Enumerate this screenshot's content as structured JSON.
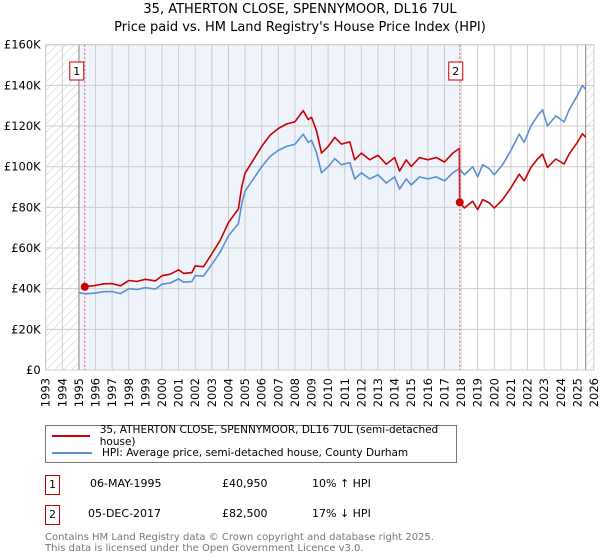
{
  "title": "35, ATHERTON CLOSE, SPENNYMOOR, DL16 7UL",
  "subtitle": "Price paid vs. HM Land Registry's House Price Index (HPI)",
  "colors": {
    "price": "#cc0000",
    "hpi": "#5b8fd0",
    "shade": "#eef3fc",
    "grid": "#cccccc"
  },
  "chart_data": {
    "type": "line",
    "title": "35, ATHERTON CLOSE, SPENNYMOOR, DL16 7UL",
    "xlim": [
      1993,
      2026
    ],
    "ylim": [
      0,
      160000
    ],
    "x_ticks": [
      "1993",
      "1994",
      "1995",
      "1996",
      "1997",
      "1998",
      "1999",
      "2000",
      "2001",
      "2002",
      "2003",
      "2004",
      "2005",
      "2006",
      "2007",
      "2008",
      "2009",
      "2010",
      "2011",
      "2012",
      "2013",
      "2014",
      "2015",
      "2016",
      "2017",
      "2018",
      "2019",
      "2020",
      "2021",
      "2022",
      "2023",
      "2024",
      "2025",
      "2026"
    ],
    "y_ticks": [
      {
        "v": 0,
        "label": "£0"
      },
      {
        "v": 20000,
        "label": "£20K"
      },
      {
        "v": 40000,
        "label": "£40K"
      },
      {
        "v": 60000,
        "label": "£60K"
      },
      {
        "v": 80000,
        "label": "£80K"
      },
      {
        "v": 100000,
        "label": "£100K"
      },
      {
        "v": 120000,
        "label": "£120K"
      },
      {
        "v": 140000,
        "label": "£140K"
      },
      {
        "v": 160000,
        "label": "£160K"
      }
    ],
    "grid": true,
    "data_range": [
      1995,
      2025.5
    ],
    "series": [
      {
        "name": "35, ATHERTON CLOSE, SPENNYMOOR, DL16 7UL (semi-detached house)",
        "color": "#cc0000",
        "points": [
          [
            1995.35,
            40.95
          ],
          [
            1996,
            41.6
          ],
          [
            1996.5,
            42.4
          ],
          [
            1997,
            42.5
          ],
          [
            1997.5,
            41.4
          ],
          [
            1998,
            44
          ],
          [
            1998.5,
            43.6
          ],
          [
            1999,
            44.6
          ],
          [
            1999.6,
            43.8
          ],
          [
            2000,
            46.4
          ],
          [
            2000.5,
            47.1
          ],
          [
            2001,
            49.3
          ],
          [
            2001.3,
            47.5
          ],
          [
            2001.8,
            47.9
          ],
          [
            2002,
            51.2
          ],
          [
            2002.5,
            50.8
          ],
          [
            2003,
            57.2
          ],
          [
            2003.5,
            63.8
          ],
          [
            2004,
            72.6
          ],
          [
            2004.6,
            79.2
          ],
          [
            2004.8,
            90.2
          ],
          [
            2005,
            96.8
          ],
          [
            2005.5,
            103.4
          ],
          [
            2006,
            110
          ],
          [
            2006.5,
            115.5
          ],
          [
            2007,
            118.8
          ],
          [
            2007.5,
            121
          ],
          [
            2008,
            122.1
          ],
          [
            2008.5,
            127.6
          ],
          [
            2008.8,
            123.2
          ],
          [
            2009,
            124.3
          ],
          [
            2009.3,
            117.7
          ],
          [
            2009.6,
            106.7
          ],
          [
            2010,
            110
          ],
          [
            2010.4,
            114.4
          ],
          [
            2010.8,
            111.1
          ],
          [
            2011.3,
            112.2
          ],
          [
            2011.6,
            103.4
          ],
          [
            2012,
            106.7
          ],
          [
            2012.5,
            103.4
          ],
          [
            2013,
            105.6
          ],
          [
            2013.5,
            101.2
          ],
          [
            2014,
            104.5
          ],
          [
            2014.3,
            97.9
          ],
          [
            2014.7,
            103.4
          ],
          [
            2015,
            100.1
          ],
          [
            2015.5,
            104.5
          ],
          [
            2016,
            103.4
          ],
          [
            2016.5,
            104.5
          ],
          [
            2017,
            102.3
          ],
          [
            2017.5,
            106.7
          ],
          [
            2017.9,
            109
          ],
          [
            2017.92,
            82.5
          ],
          [
            2018.2,
            79.7
          ],
          [
            2018.7,
            83
          ],
          [
            2019,
            78.9
          ],
          [
            2019.3,
            83.8
          ],
          [
            2019.7,
            82.2
          ],
          [
            2020,
            79.7
          ],
          [
            2020.5,
            83.8
          ],
          [
            2021,
            89.6
          ],
          [
            2021.5,
            96.3
          ],
          [
            2021.8,
            93
          ],
          [
            2022.2,
            99.6
          ],
          [
            2022.6,
            103.8
          ],
          [
            2022.9,
            106.2
          ],
          [
            2023.2,
            99.6
          ],
          [
            2023.7,
            103.8
          ],
          [
            2024.2,
            101.3
          ],
          [
            2024.5,
            106.2
          ],
          [
            2025,
            112
          ],
          [
            2025.3,
            116.2
          ],
          [
            2025.5,
            114.5
          ]
        ]
      },
      {
        "name": "HPI: Average price, semi-detached house, County Durham",
        "color": "#5b8fd0",
        "points": [
          [
            1995,
            38
          ],
          [
            1995.4,
            37.5
          ],
          [
            1996,
            37.8
          ],
          [
            1996.5,
            38.5
          ],
          [
            1997,
            38.6
          ],
          [
            1997.5,
            37.6
          ],
          [
            1998,
            40
          ],
          [
            1998.5,
            39.6
          ],
          [
            1999,
            40.5
          ],
          [
            1999.6,
            39.8
          ],
          [
            2000,
            42.2
          ],
          [
            2000.5,
            42.8
          ],
          [
            2001,
            44.8
          ],
          [
            2001.3,
            43.2
          ],
          [
            2001.8,
            43.5
          ],
          [
            2002,
            46.5
          ],
          [
            2002.5,
            46.2
          ],
          [
            2003,
            52
          ],
          [
            2003.5,
            58
          ],
          [
            2004,
            66
          ],
          [
            2004.6,
            72
          ],
          [
            2004.8,
            82
          ],
          [
            2005,
            88
          ],
          [
            2005.5,
            94
          ],
          [
            2006,
            100
          ],
          [
            2006.5,
            105
          ],
          [
            2007,
            108
          ],
          [
            2007.5,
            110
          ],
          [
            2008,
            111
          ],
          [
            2008.5,
            116
          ],
          [
            2008.8,
            112
          ],
          [
            2009,
            113
          ],
          [
            2009.3,
            107
          ],
          [
            2009.6,
            97
          ],
          [
            2010,
            100
          ],
          [
            2010.4,
            104
          ],
          [
            2010.8,
            101
          ],
          [
            2011.3,
            102
          ],
          [
            2011.6,
            94
          ],
          [
            2012,
            97
          ],
          [
            2012.5,
            94
          ],
          [
            2013,
            96
          ],
          [
            2013.5,
            92
          ],
          [
            2014,
            95
          ],
          [
            2014.3,
            89
          ],
          [
            2014.7,
            94
          ],
          [
            2015,
            91
          ],
          [
            2015.5,
            95
          ],
          [
            2016,
            94
          ],
          [
            2016.5,
            95
          ],
          [
            2017,
            93
          ],
          [
            2017.5,
            97
          ],
          [
            2017.9,
            99
          ],
          [
            2018.2,
            96
          ],
          [
            2018.7,
            100
          ],
          [
            2019,
            95
          ],
          [
            2019.3,
            101
          ],
          [
            2019.7,
            99
          ],
          [
            2020,
            96
          ],
          [
            2020.5,
            101
          ],
          [
            2021,
            108
          ],
          [
            2021.5,
            116
          ],
          [
            2021.8,
            112
          ],
          [
            2022.2,
            120
          ],
          [
            2022.6,
            125
          ],
          [
            2022.9,
            128
          ],
          [
            2023.2,
            120
          ],
          [
            2023.7,
            125
          ],
          [
            2024.2,
            122
          ],
          [
            2024.5,
            128
          ],
          [
            2025,
            135
          ],
          [
            2025.3,
            140
          ],
          [
            2025.5,
            138
          ]
        ]
      }
    ],
    "y_units": "thousands GBP",
    "annotations": [
      {
        "label": "1",
        "x": 1995.35,
        "y": 40.95
      },
      {
        "label": "2",
        "x": 2017.92,
        "y": 82.5
      }
    ],
    "legend_position": "bottom"
  },
  "legend": {
    "price": "35, ATHERTON CLOSE, SPENNYMOOR, DL16 7UL (semi-detached house)",
    "hpi": "HPI: Average price, semi-detached house, County Durham"
  },
  "sales": [
    {
      "num": "1",
      "date": "06-MAY-1995",
      "price": "£40,950",
      "hpi": "10% ↑ HPI"
    },
    {
      "num": "2",
      "date": "05-DEC-2017",
      "price": "£82,500",
      "hpi": "17% ↓ HPI"
    }
  ],
  "footer": {
    "line1": "Contains HM Land Registry data © Crown copyright and database right 2025.",
    "line2": "This data is licensed under the Open Government Licence v3.0."
  }
}
